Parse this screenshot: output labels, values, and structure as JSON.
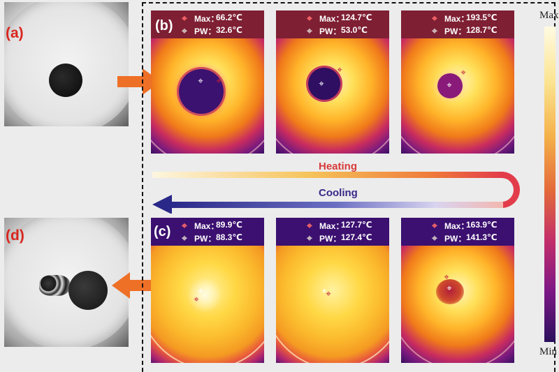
{
  "photos": [
    {
      "id": "a",
      "label": "(a)"
    },
    {
      "id": "d",
      "label": "(d)"
    }
  ],
  "panels": {
    "b": {
      "label": "(b)"
    },
    "c": {
      "label": "(c)"
    }
  },
  "heating_images": [
    {
      "max": "66.2℃",
      "pw": "32.6℃"
    },
    {
      "max": "124.7℃",
      "pw": "53.0℃"
    },
    {
      "max": "193.5℃",
      "pw": "128.7℃"
    }
  ],
  "cooling_images": [
    {
      "max": "89.9℃",
      "pw": "88.3℃"
    },
    {
      "max": "127.7℃",
      "pw": "127.4℃"
    },
    {
      "max": "163.9℃",
      "pw": "141.3℃"
    }
  ],
  "readout_labels": {
    "max": "Max：",
    "pw": "PW："
  },
  "process": {
    "heating": "Heating",
    "cooling": "Cooling"
  },
  "colorbar": {
    "max": "Max",
    "min": "Min"
  },
  "colors": {
    "label_red": "#d9251d",
    "orange_arrow": "#ee7026",
    "heating_text": "#d83a3a",
    "cooling_text": "#3a2888",
    "readout_bg": "#7e1f33"
  }
}
